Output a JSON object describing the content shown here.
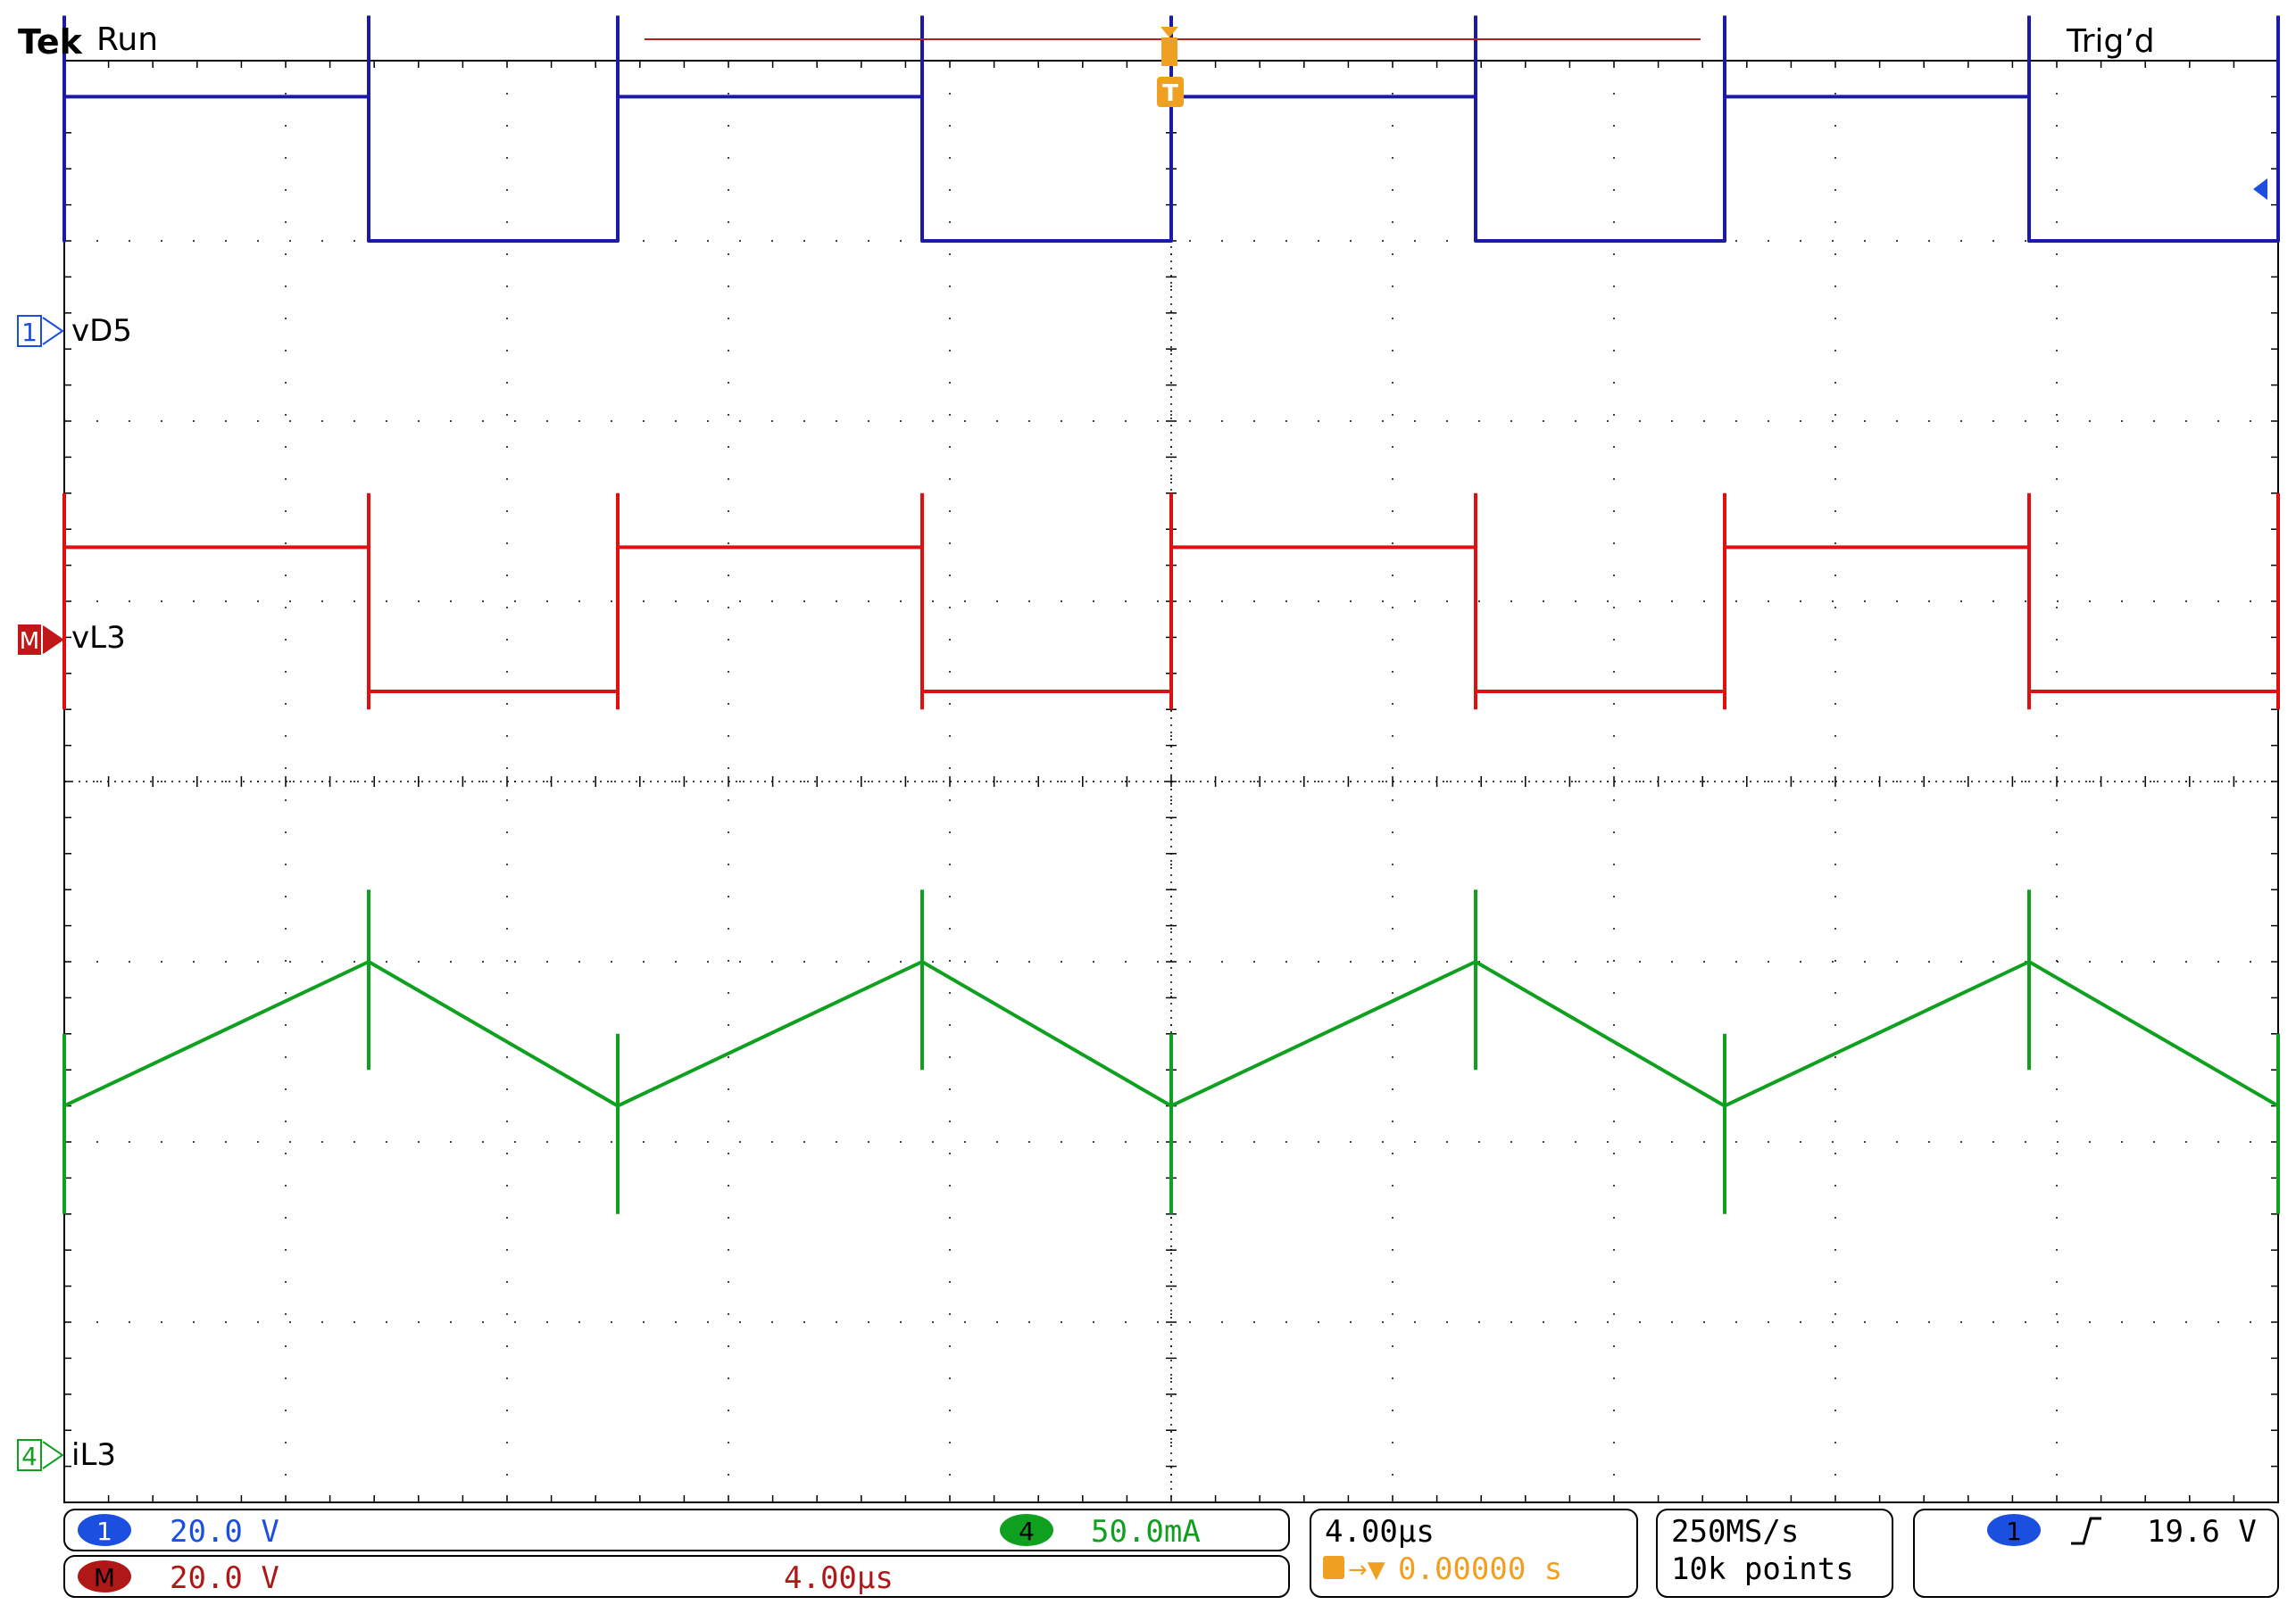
{
  "header": {
    "brand": "Tek",
    "run_state": "Run",
    "trigger_status": "Trig’d",
    "trigger_marker": "T"
  },
  "channels": [
    {
      "id": "1",
      "name": "vD5",
      "color": "#1a1aa6",
      "marker": "1"
    },
    {
      "id": "M",
      "name": "vL3",
      "color": "#e01010",
      "marker": "M"
    },
    {
      "id": "4",
      "name": "iL3",
      "color": "#10a020",
      "marker": "4"
    }
  ],
  "readouts": {
    "ch1_badge": "1",
    "ch1_scale": "20.0 V",
    "ch4_badge": "4",
    "ch4_scale": "50.0mA",
    "math_badge": "M",
    "math_scale": "20.0 V",
    "math_timebase": "4.00µs",
    "horizontal_scale": "4.00µs",
    "trigger_position": "0.00000 s",
    "sample_rate": "250MS/s",
    "record_length": "10k points",
    "trigger_source": "1",
    "trigger_level": "19.6 V"
  },
  "colors": {
    "ch1": "#1a1aa6",
    "math": "#e01010",
    "ch4": "#10a020",
    "trigger": "#f0a020",
    "graticule": "#000000"
  },
  "chart_data": {
    "type": "line",
    "xlabel": "",
    "ylabel": "",
    "x_divisions": 10,
    "y_divisions": 8,
    "grid": true,
    "switching_period_divisions": 2.5,
    "series": [
      {
        "name": "vD5",
        "waveform": "square",
        "high_div": 3.8,
        "low_div": 3.0,
        "ringing": true
      },
      {
        "name": "vL3",
        "waveform": "square",
        "high_div": 1.3,
        "low_div": 0.5,
        "ringing": true
      },
      {
        "name": "iL3",
        "waveform": "triangle",
        "peak_div": -1.0,
        "valley_div": -1.8,
        "spikes": true
      }
    ]
  }
}
